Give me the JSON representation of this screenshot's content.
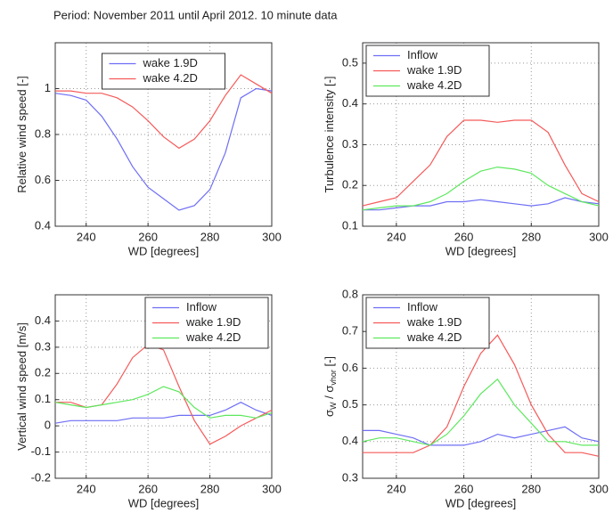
{
  "page_title": "Period: November 2011 until April 2012. 10 minute data",
  "chart_data": [
    {
      "type": "line",
      "xlabel": "WD [degrees]",
      "ylabel": [
        "Relative wind speed [-]"
      ],
      "x": [
        230,
        235,
        240,
        245,
        250,
        255,
        260,
        265,
        270,
        275,
        280,
        285,
        290,
        295,
        300
      ],
      "xlim": [
        230,
        300
      ],
      "xticks": [
        240,
        260,
        280,
        300
      ],
      "ylim": [
        0.4,
        1.2
      ],
      "yticks": [
        0.4,
        0.6,
        0.8,
        1
      ],
      "grid": true,
      "legend_loc": "north",
      "series": [
        {
          "name": "wake 1.9D",
          "color": "#6e6ef5",
          "values": [
            0.98,
            0.97,
            0.95,
            0.88,
            0.78,
            0.66,
            0.57,
            0.52,
            0.47,
            0.49,
            0.56,
            0.72,
            0.96,
            1.0,
            0.99
          ]
        },
        {
          "name": "wake 4.2D",
          "color": "#f55a5a",
          "values": [
            0.99,
            0.99,
            0.98,
            0.98,
            0.96,
            0.92,
            0.86,
            0.79,
            0.74,
            0.78,
            0.86,
            0.97,
            1.06,
            1.02,
            0.98
          ]
        }
      ]
    },
    {
      "type": "line",
      "xlabel": "WD [degrees]",
      "ylabel": [
        "Turbulence intensity [-]"
      ],
      "x": [
        230,
        235,
        240,
        245,
        250,
        255,
        260,
        265,
        270,
        275,
        280,
        285,
        290,
        295,
        300
      ],
      "xlim": [
        230,
        300
      ],
      "xticks": [
        240,
        260,
        280,
        300
      ],
      "ylim": [
        0.1,
        0.55
      ],
      "yticks": [
        0.1,
        0.2,
        0.3,
        0.4,
        0.5
      ],
      "grid": true,
      "legend_loc": "northwest",
      "series": [
        {
          "name": "Inflow",
          "color": "#6e6ef5",
          "values": [
            0.14,
            0.14,
            0.145,
            0.15,
            0.15,
            0.16,
            0.16,
            0.165,
            0.16,
            0.155,
            0.15,
            0.155,
            0.17,
            0.16,
            0.155
          ]
        },
        {
          "name": "wake 1.9D",
          "color": "#f55a5a",
          "values": [
            0.15,
            0.16,
            0.17,
            0.21,
            0.25,
            0.32,
            0.36,
            0.36,
            0.355,
            0.36,
            0.36,
            0.33,
            0.25,
            0.18,
            0.16
          ]
        },
        {
          "name": "wake 4.2D",
          "color": "#5ee85e",
          "values": [
            0.14,
            0.145,
            0.15,
            0.15,
            0.16,
            0.18,
            0.21,
            0.235,
            0.245,
            0.24,
            0.23,
            0.2,
            0.18,
            0.16,
            0.15
          ]
        }
      ]
    },
    {
      "type": "line",
      "xlabel": "WD [degrees]",
      "ylabel": [
        "Vertical wind speed [m/s]"
      ],
      "x": [
        230,
        235,
        240,
        245,
        250,
        255,
        260,
        265,
        270,
        275,
        280,
        285,
        290,
        295,
        300
      ],
      "xlim": [
        230,
        300
      ],
      "xticks": [
        240,
        260,
        280,
        300
      ],
      "ylim": [
        -0.2,
        0.5
      ],
      "yticks": [
        -0.2,
        -0.1,
        0,
        0.1,
        0.2,
        0.3,
        0.4
      ],
      "grid": true,
      "legend_loc": "northeast",
      "series": [
        {
          "name": "Inflow",
          "color": "#6e6ef5",
          "values": [
            0.01,
            0.02,
            0.02,
            0.02,
            0.02,
            0.03,
            0.03,
            0.03,
            0.04,
            0.04,
            0.04,
            0.06,
            0.09,
            0.06,
            0.04
          ]
        },
        {
          "name": "wake 1.9D",
          "color": "#f55a5a",
          "values": [
            0.09,
            0.09,
            0.07,
            0.08,
            0.16,
            0.26,
            0.31,
            0.29,
            0.15,
            0.02,
            -0.07,
            -0.04,
            0.0,
            0.03,
            0.06
          ]
        },
        {
          "name": "wake 4.2D",
          "color": "#5ee85e",
          "values": [
            0.09,
            0.08,
            0.07,
            0.08,
            0.09,
            0.1,
            0.12,
            0.15,
            0.13,
            0.07,
            0.03,
            0.04,
            0.04,
            0.03,
            0.05
          ]
        }
      ]
    },
    {
      "type": "line",
      "xlabel": "WD [degrees]",
      "ylabel": [
        "σ",
        "W",
        " / σ",
        "vhor",
        " [-]"
      ],
      "x": [
        230,
        235,
        240,
        245,
        250,
        255,
        260,
        265,
        270,
        275,
        280,
        285,
        290,
        295,
        300
      ],
      "xlim": [
        230,
        300
      ],
      "xticks": [
        240,
        260,
        280,
        300
      ],
      "ylim": [
        0.3,
        0.8
      ],
      "yticks": [
        0.3,
        0.4,
        0.5,
        0.6,
        0.7,
        0.8
      ],
      "grid": true,
      "legend_loc": "northwest",
      "series": [
        {
          "name": "Inflow",
          "color": "#6e6ef5",
          "values": [
            0.43,
            0.43,
            0.42,
            0.41,
            0.39,
            0.39,
            0.39,
            0.4,
            0.42,
            0.41,
            0.42,
            0.43,
            0.44,
            0.41,
            0.4
          ]
        },
        {
          "name": "wake 1.9D",
          "color": "#f55a5a",
          "values": [
            0.37,
            0.37,
            0.37,
            0.37,
            0.39,
            0.44,
            0.55,
            0.64,
            0.69,
            0.61,
            0.5,
            0.42,
            0.37,
            0.37,
            0.36
          ]
        },
        {
          "name": "wake 4.2D",
          "color": "#5ee85e",
          "values": [
            0.4,
            0.41,
            0.41,
            0.4,
            0.39,
            0.42,
            0.47,
            0.53,
            0.57,
            0.5,
            0.45,
            0.4,
            0.4,
            0.39,
            0.39
          ]
        }
      ]
    }
  ]
}
